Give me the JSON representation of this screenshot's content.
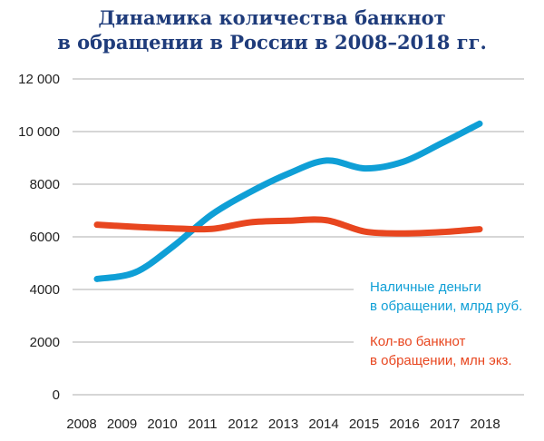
{
  "chart_data": {
    "type": "line",
    "title": "Динамика количества банкнот в обращении в России в 2008–2018 гг.",
    "title_lines": [
      "Динамика количества банкнот",
      "в обращении в России в 2008–2018 гг."
    ],
    "x": [
      2008,
      2009,
      2010,
      2011,
      2012,
      2013,
      2014,
      2015,
      2016,
      2017,
      2018
    ],
    "x_tick_labels": [
      "2008",
      "2009",
      "2010",
      "2011",
      "2012",
      "2013",
      "2014",
      "2015",
      "2016",
      "2017",
      "2018"
    ],
    "y_tick_labels": [
      "0",
      "2000",
      "4000",
      "6000",
      "8000",
      "10 000",
      "12 000"
    ],
    "y_ticks": [
      0,
      2000,
      4000,
      6000,
      8000,
      10000,
      12000
    ],
    "ylim": [
      0,
      12000
    ],
    "grid": "horizontal",
    "legend_placement": "right",
    "series": [
      {
        "name": "Наличные деньги в обращении, млрд руб.",
        "legend_lines": [
          "Наличные деньги",
          "в обращении, млрд руб."
        ],
        "color": "#0f9fd6",
        "values": [
          4400,
          4650,
          5650,
          6850,
          7700,
          8400,
          8900,
          8600,
          8850,
          9550,
          10300
        ]
      },
      {
        "name": "Кол-во банкнот в обращении, млн экз.",
        "legend_lines": [
          "Кол-во банкнот",
          "в обращении, млн экз."
        ],
        "color": "#e8461f",
        "values": [
          6460,
          6380,
          6320,
          6300,
          6550,
          6610,
          6630,
          6200,
          6130,
          6180,
          6290
        ]
      }
    ]
  },
  "colors": {
    "title": "#1f3c7b",
    "grid": "#c8c8c8"
  }
}
